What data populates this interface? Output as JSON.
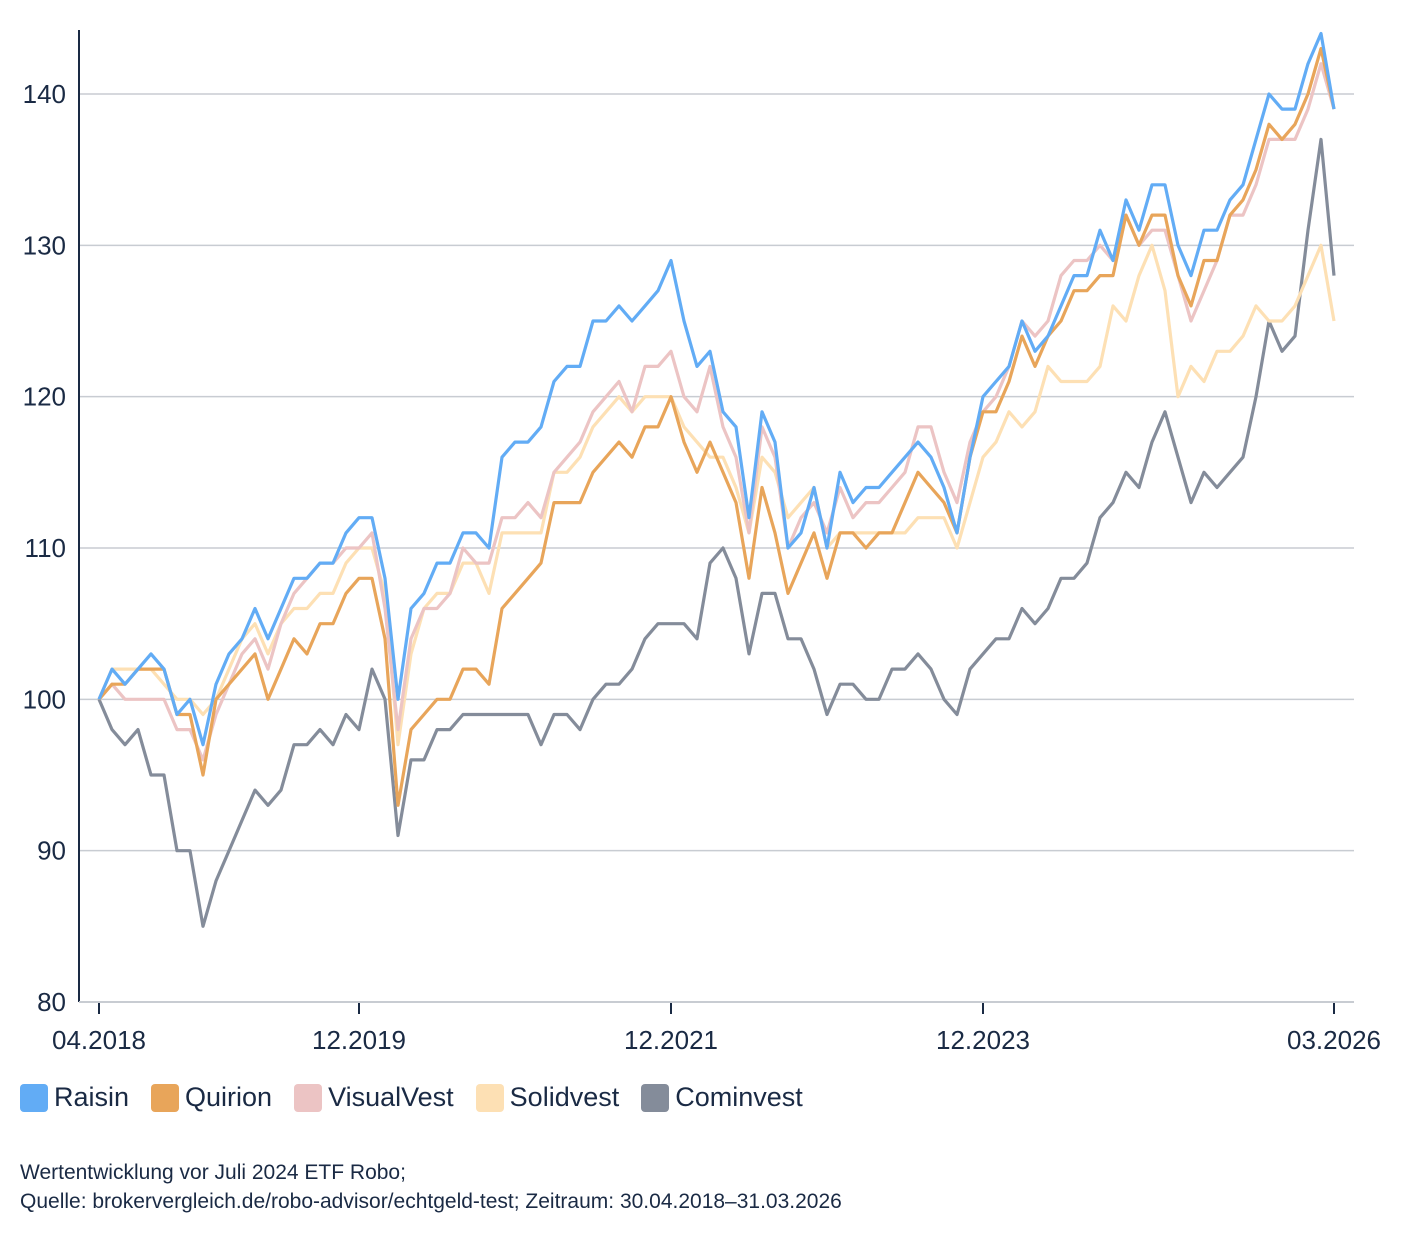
{
  "chart_data": {
    "type": "line",
    "x_start": "04.2018",
    "x_end": "03.2026",
    "x_tick_labels": [
      "04.2018",
      "12.2019",
      "12.2021",
      "12.2023",
      "03.2026"
    ],
    "y_ticks": [
      80,
      90,
      100,
      110,
      120,
      130,
      140
    ],
    "ylim": [
      80,
      144
    ],
    "grid": true,
    "legend_position": "bottom-left",
    "series": [
      {
        "name": "Raisin",
        "color": "#62acf5",
        "values": [
          100,
          102,
          101,
          102,
          103,
          102,
          99,
          100,
          97,
          101,
          103,
          104,
          106,
          104,
          106,
          108,
          108,
          109,
          109,
          111,
          112,
          112,
          108,
          100,
          106,
          107,
          109,
          109,
          111,
          111,
          110,
          116,
          117,
          117,
          118,
          121,
          122,
          122,
          125,
          125,
          126,
          125,
          126,
          127,
          129,
          125,
          122,
          123,
          119,
          118,
          112,
          119,
          117,
          110,
          111,
          114,
          110,
          115,
          113,
          114,
          114,
          115,
          116,
          117,
          116,
          114,
          111,
          116,
          120,
          121,
          122,
          125,
          123,
          124,
          126,
          128,
          128,
          131,
          129,
          133,
          131,
          134,
          134,
          130,
          128,
          131,
          131,
          133,
          134,
          137,
          140,
          139,
          139,
          142,
          144,
          139
        ]
      },
      {
        "name": "Quirion",
        "color": "#e8a55a",
        "values": [
          100,
          101,
          101,
          102,
          102,
          102,
          99,
          99,
          95,
          100,
          101,
          102,
          103,
          100,
          102,
          104,
          103,
          105,
          105,
          107,
          108,
          108,
          104,
          93,
          98,
          99,
          100,
          100,
          102,
          102,
          101,
          106,
          107,
          108,
          109,
          113,
          113,
          113,
          115,
          116,
          117,
          116,
          118,
          118,
          120,
          117,
          115,
          117,
          115,
          113,
          108,
          114,
          111,
          107,
          109,
          111,
          108,
          111,
          111,
          110,
          111,
          111,
          113,
          115,
          114,
          113,
          111,
          116,
          119,
          119,
          121,
          124,
          122,
          124,
          125,
          127,
          127,
          128,
          128,
          132,
          130,
          132,
          132,
          128,
          126,
          129,
          129,
          132,
          133,
          135,
          138,
          137,
          138,
          140,
          143,
          139
        ]
      },
      {
        "name": "VisualVest",
        "color": "#ecc4c4",
        "values": [
          100,
          101,
          100,
          100,
          100,
          100,
          98,
          98,
          96,
          99,
          101,
          103,
          104,
          102,
          105,
          107,
          108,
          109,
          109,
          110,
          110,
          111,
          106,
          98,
          104,
          106,
          106,
          107,
          110,
          109,
          109,
          112,
          112,
          113,
          112,
          115,
          116,
          117,
          119,
          120,
          121,
          119,
          122,
          122,
          123,
          120,
          119,
          122,
          118,
          116,
          111,
          118,
          116,
          110,
          112,
          113,
          111,
          114,
          112,
          113,
          113,
          114,
          115,
          118,
          118,
          115,
          113,
          117,
          119,
          120,
          122,
          125,
          124,
          125,
          128,
          129,
          129,
          130,
          129,
          132,
          130,
          131,
          131,
          128,
          125,
          127,
          129,
          132,
          132,
          134,
          137,
          137,
          137,
          139,
          142,
          139
        ]
      },
      {
        "name": "Solidvest",
        "color": "#fde0b4",
        "values": [
          100,
          102,
          102,
          102,
          102,
          101,
          100,
          100,
          99,
          100,
          102,
          104,
          105,
          103,
          105,
          106,
          106,
          107,
          107,
          109,
          110,
          110,
          107,
          97,
          103,
          106,
          107,
          107,
          109,
          109,
          107,
          111,
          111,
          111,
          111,
          115,
          115,
          116,
          118,
          119,
          120,
          119,
          120,
          120,
          120,
          118,
          117,
          116,
          116,
          114,
          111,
          116,
          115,
          112,
          113,
          114,
          110,
          111,
          111,
          111,
          111,
          111,
          111,
          112,
          112,
          112,
          110,
          113,
          116,
          117,
          119,
          118,
          119,
          122,
          121,
          121,
          121,
          122,
          126,
          125,
          128,
          130,
          127,
          120,
          122,
          121,
          123,
          123,
          124,
          126,
          125,
          125,
          126,
          128,
          130,
          125
        ]
      },
      {
        "name": "Cominvest",
        "color": "#848c9a",
        "values": [
          100,
          98,
          97,
          98,
          95,
          95,
          90,
          90,
          85,
          88,
          90,
          92,
          94,
          93,
          94,
          97,
          97,
          98,
          97,
          99,
          98,
          102,
          100,
          91,
          96,
          96,
          98,
          98,
          99,
          99,
          99,
          99,
          99,
          99,
          97,
          99,
          99,
          98,
          100,
          101,
          101,
          102,
          104,
          105,
          105,
          105,
          104,
          109,
          110,
          108,
          103,
          107,
          107,
          104,
          104,
          102,
          99,
          101,
          101,
          100,
          100,
          102,
          102,
          103,
          102,
          100,
          99,
          102,
          103,
          104,
          104,
          106,
          105,
          106,
          108,
          108,
          109,
          112,
          113,
          115,
          114,
          117,
          119,
          116,
          113,
          115,
          114,
          115,
          116,
          120,
          125,
          123,
          124,
          131,
          137,
          128
        ]
      }
    ]
  },
  "caption": {
    "line1": "Wertentwicklung vor Juli 2024 ETF Robo;",
    "line2": "Quelle: brokervergleich.de/robo-advisor/echtgeld-test; Zeitraum: 30.04.2018–31.03.2026"
  }
}
